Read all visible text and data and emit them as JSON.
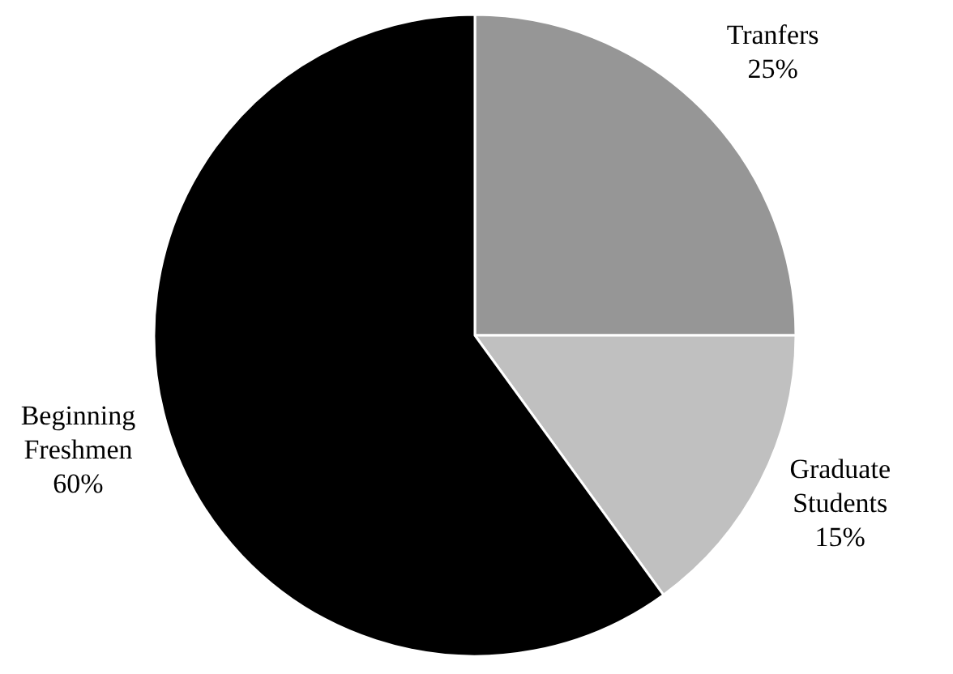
{
  "chart_data": {
    "type": "pie",
    "categories": [
      "Tranfers",
      "Graduate Students",
      "Beginning Freshmen"
    ],
    "values": [
      25,
      15,
      60
    ],
    "colors": [
      "#969696",
      "#c0c0c0",
      "#000000"
    ],
    "value_labels": [
      "25%",
      "15%",
      "60%"
    ],
    "legend": false
  }
}
